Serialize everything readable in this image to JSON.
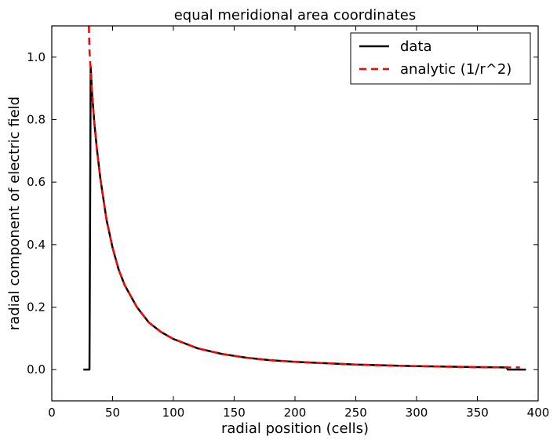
{
  "chart_data": {
    "type": "line",
    "title": "equal meridional area coordinates",
    "xlabel": "radial position (cells)",
    "ylabel": "radial component of electric field",
    "xlim": [
      0,
      400
    ],
    "ylim": [
      -0.1,
      1.1
    ],
    "xticks": [
      0,
      50,
      100,
      150,
      200,
      250,
      300,
      350,
      400
    ],
    "yticks": [
      0.0,
      0.2,
      0.4,
      0.6,
      0.8,
      1.0
    ],
    "xtick_labels": [
      "0",
      "50",
      "100",
      "150",
      "200",
      "250",
      "300",
      "350",
      "400"
    ],
    "ytick_labels": [
      "0.0",
      "0.2",
      "0.4",
      "0.6",
      "0.8",
      "1.0"
    ],
    "grid": false,
    "legend_position": "top-right",
    "series": [
      {
        "name": "data",
        "color": "#000000",
        "style": "solid",
        "x": [
          26,
          29,
          31,
          32,
          33,
          35,
          37,
          40,
          45,
          50,
          55,
          60,
          70,
          80,
          90,
          100,
          120,
          140,
          160,
          180,
          200,
          250,
          300,
          350,
          372,
          374,
          375,
          380,
          390
        ],
        "y": [
          0.0,
          0.0,
          0.0,
          0.97,
          0.89,
          0.79,
          0.71,
          0.61,
          0.48,
          0.39,
          0.32,
          0.27,
          0.2,
          0.15,
          0.12,
          0.098,
          0.068,
          0.05,
          0.038,
          0.03,
          0.025,
          0.016,
          0.011,
          0.008,
          0.007,
          0.007,
          0.0,
          0.0,
          0.0
        ]
      },
      {
        "name": "analytic (1/r^2)",
        "color": "#ff0000",
        "style": "dashed",
        "x": [
          30.5,
          31,
          32,
          33,
          35,
          37,
          40,
          45,
          50,
          55,
          60,
          70,
          80,
          90,
          100,
          120,
          140,
          160,
          180,
          200,
          250,
          300,
          350,
          375,
          380,
          385
        ],
        "y": [
          1.1,
          1.02,
          0.96,
          0.89,
          0.79,
          0.71,
          0.61,
          0.48,
          0.39,
          0.32,
          0.27,
          0.2,
          0.15,
          0.12,
          0.098,
          0.068,
          0.05,
          0.038,
          0.03,
          0.025,
          0.016,
          0.011,
          0.008,
          0.007,
          0.007,
          0.007
        ]
      }
    ]
  }
}
